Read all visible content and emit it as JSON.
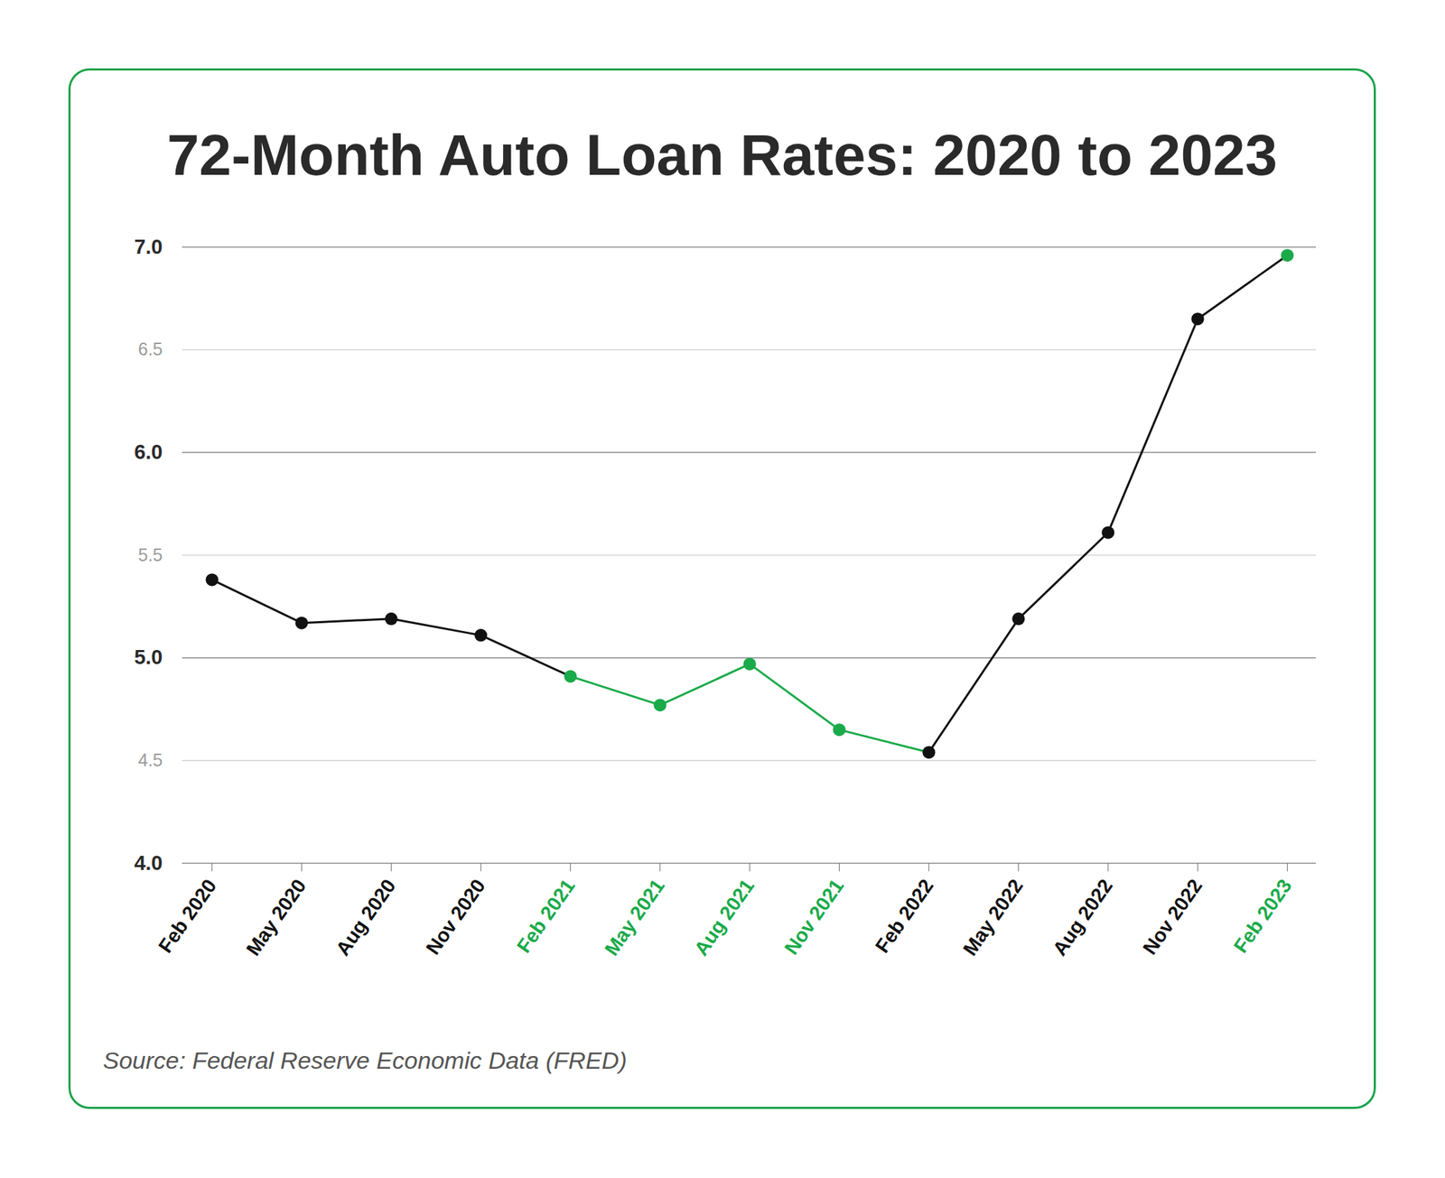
{
  "chart_data": {
    "type": "line",
    "title": "72-Month Auto Loan Rates: 2020 to 2023",
    "caption": "Source: Federal Reserve Economic Data (FRED)",
    "categories": [
      "Feb 2020",
      "May 2020",
      "Aug 2020",
      "Nov 2020",
      "Feb 2021",
      "May 2021",
      "Aug 2021",
      "Nov 2021",
      "Feb 2022",
      "May 2022",
      "Aug 2022",
      "Nov 2022",
      "Feb 2023"
    ],
    "values": [
      5.38,
      5.17,
      5.19,
      5.11,
      4.91,
      4.77,
      4.97,
      4.65,
      4.54,
      5.19,
      5.61,
      6.65,
      6.96
    ],
    "colors": [
      "#111111",
      "#111111",
      "#111111",
      "#111111",
      "#1aaa4a",
      "#1aaa4a",
      "#1aaa4a",
      "#1aaa4a",
      "#111111",
      "#111111",
      "#111111",
      "#111111",
      "#1aaa4a"
    ],
    "ylim": [
      4,
      7
    ],
    "yticks": [
      {
        "value": 4,
        "label": "4.0"
      },
      {
        "value": 4.5,
        "label": "4.5"
      },
      {
        "value": 5,
        "label": "5.0"
      },
      {
        "value": 5.5,
        "label": "5.5"
      },
      {
        "value": 6,
        "label": "6.0"
      },
      {
        "value": 6.5,
        "label": "6.5"
      },
      {
        "value": 7,
        "label": "7.0"
      }
    ],
    "grid": true,
    "marker": "circle"
  }
}
